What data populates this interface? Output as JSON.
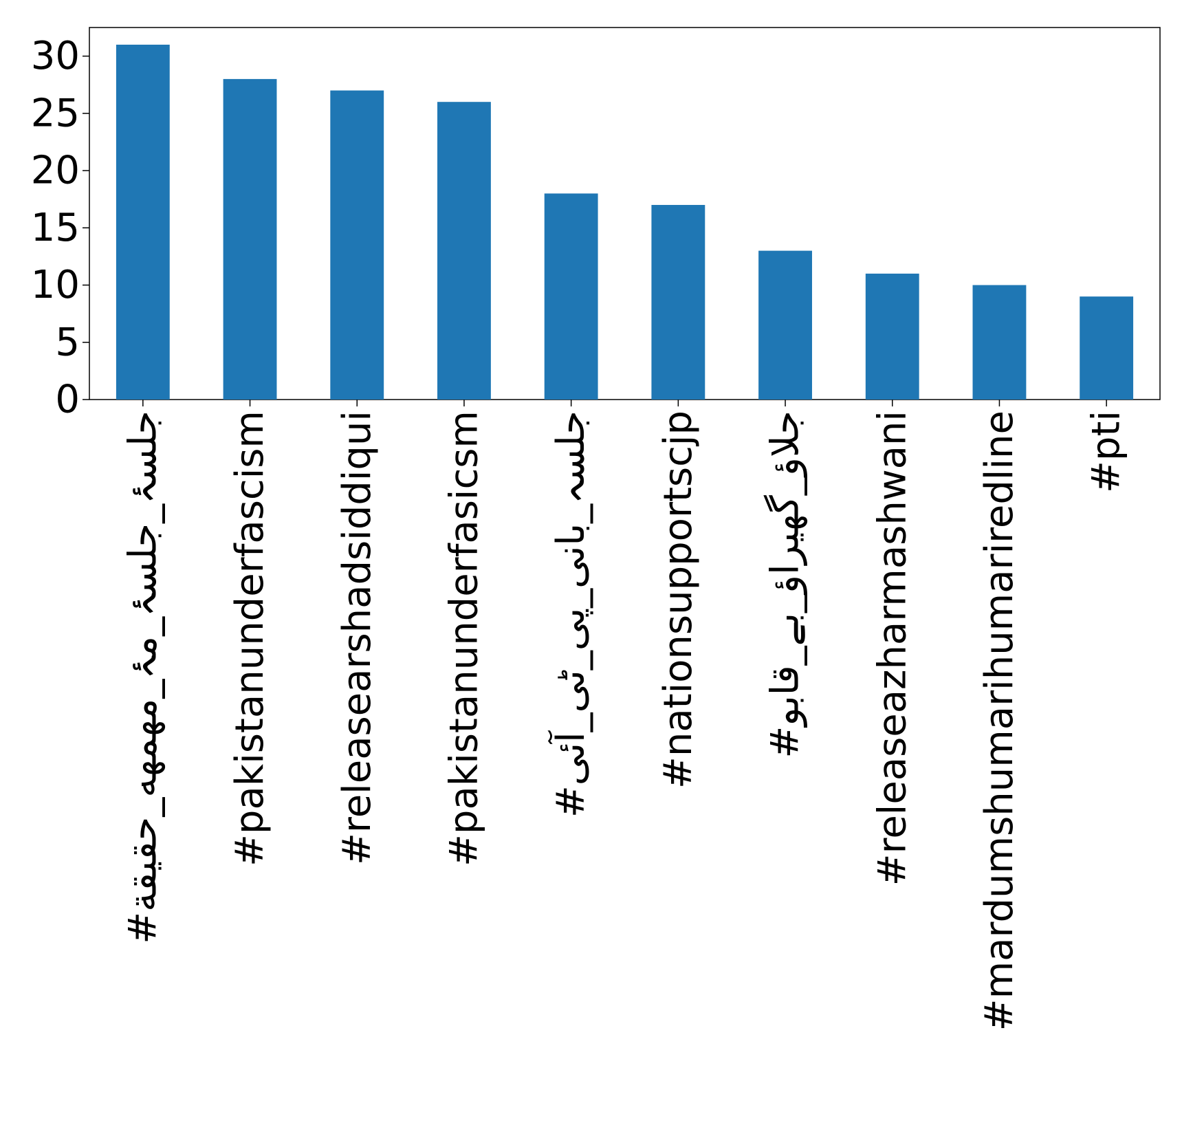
{
  "chart_data": {
    "type": "bar",
    "categories": [
      "#جلسۂ_جلسۂ_مۂ_مهمهه_حقيقة",
      "#pakistanunderfascism",
      "#releasearshadsiddiqui",
      "#pakistanunderfasicsm",
      "#جلسہ_بانی_پی_ٹی_آئی",
      "#nationsupportscjp",
      "#جلاؤ_گھیراؤ_بے_قابو",
      "#releaseazharmashwani",
      "#mardumshumarihumariredline",
      "#pti"
    ],
    "values": [
      31,
      28,
      27,
      26,
      18,
      17,
      13,
      11,
      10,
      9
    ],
    "ylim": [
      0,
      32.5
    ],
    "yticks": [
      "0",
      "5",
      "10",
      "15",
      "20",
      "25",
      "30"
    ],
    "ytick_values": [
      0,
      5,
      10,
      15,
      20,
      25,
      30
    ],
    "bar_color": "#1f77b4",
    "grid": false,
    "title": "",
    "xlabel": "",
    "ylabel": ""
  }
}
